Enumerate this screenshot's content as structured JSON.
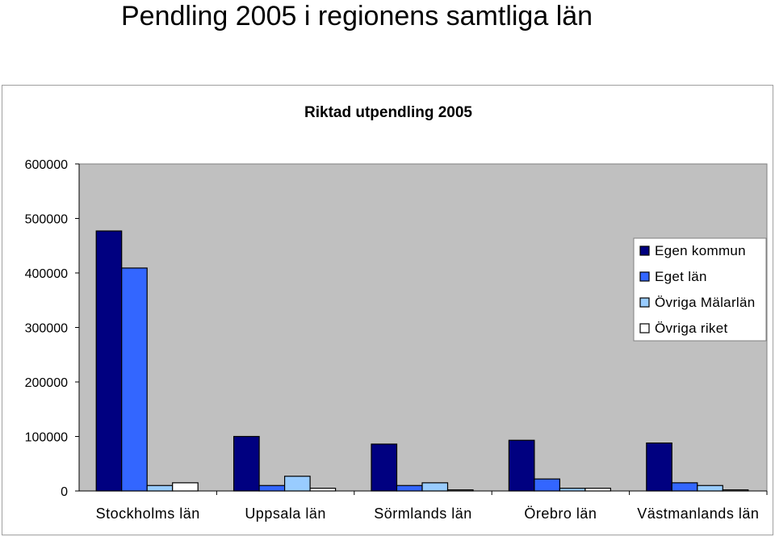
{
  "page": {
    "title": "Pendling 2005 i regionens samtliga län"
  },
  "colors": {
    "plot_background": "#c0c0c0",
    "series": [
      "#000080",
      "#3366ff",
      "#99ccff",
      "#ffffff"
    ]
  },
  "chart_data": {
    "type": "bar",
    "title": "Riktad utpendling 2005",
    "xlabel": "",
    "ylabel": "",
    "ylim": [
      0,
      600000
    ],
    "yticks": [
      0,
      100000,
      200000,
      300000,
      400000,
      500000,
      600000
    ],
    "grid": false,
    "legend_position": "right",
    "categories": [
      "Stockholms län",
      "Uppsala län",
      "Sörmlands län",
      "Örebro län",
      "Västmanlands län"
    ],
    "series": [
      {
        "name": "Egen kommun",
        "values": [
          477000,
          100000,
          86000,
          93000,
          88000
        ]
      },
      {
        "name": "Eget län",
        "values": [
          409000,
          10000,
          10000,
          22000,
          15000
        ]
      },
      {
        "name": "Övriga Mälarlän",
        "values": [
          10000,
          27000,
          15000,
          5000,
          10000
        ]
      },
      {
        "name": "Övriga riket",
        "values": [
          15000,
          5000,
          2000,
          5000,
          2000
        ]
      }
    ]
  }
}
